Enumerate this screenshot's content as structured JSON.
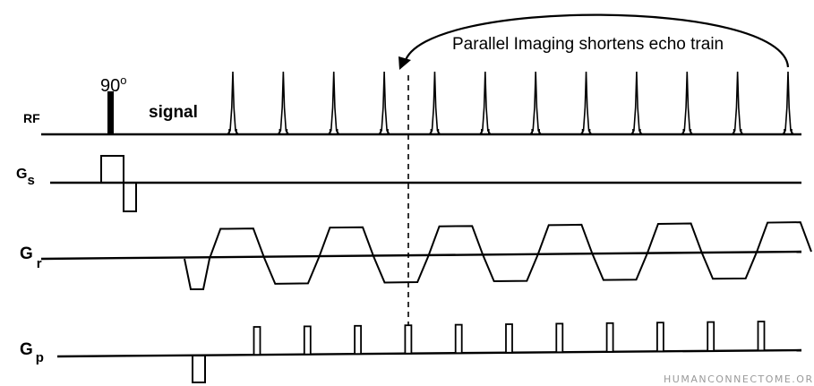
{
  "diagram": {
    "annotation": "Parallel Imaging shortens echo train",
    "flip_angle": "90",
    "flip_angle_unit": "o",
    "signal_label": "signal",
    "rows": {
      "rf": {
        "label": "RF"
      },
      "gs": {
        "label": "G",
        "subscript": "s"
      },
      "gr": {
        "label": "G",
        "subscript": "r"
      },
      "gp": {
        "label": "G",
        "subscript": "p"
      }
    },
    "echo_count": 12,
    "phase_blip_count": 11,
    "readout_lobe_count": 11
  },
  "watermark": "HUMANCONNECTOME.ORG",
  "colors": {
    "ink": "#000000",
    "background": "#ffffff",
    "watermark": "#9a9a9a"
  }
}
